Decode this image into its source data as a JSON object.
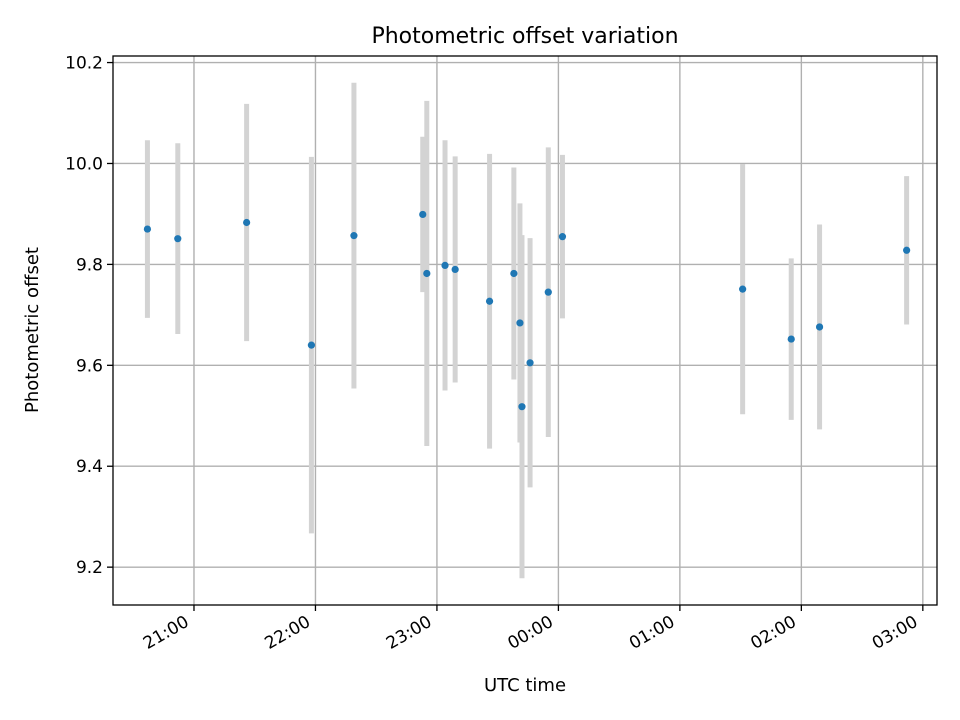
{
  "chart_data": {
    "type": "scatter",
    "title": "Photometric offset variation",
    "xlabel": "UTC time",
    "ylabel": "Photometric offset",
    "xlim": [
      "2023-01-01T20:20:00",
      "2023-01-02T03:07:00"
    ],
    "ylim": [
      9.125,
      10.213
    ],
    "x_ticks": [
      {
        "value": "2023-01-01T21:00:00",
        "label": "21:00"
      },
      {
        "value": "2023-01-01T22:00:00",
        "label": "22:00"
      },
      {
        "value": "2023-01-01T23:00:00",
        "label": "23:00"
      },
      {
        "value": "2023-01-02T00:00:00",
        "label": "00:00"
      },
      {
        "value": "2023-01-02T01:00:00",
        "label": "01:00"
      },
      {
        "value": "2023-01-02T02:00:00",
        "label": "02:00"
      },
      {
        "value": "2023-01-02T03:00:00",
        "label": "03:00"
      }
    ],
    "y_ticks": [
      {
        "value": 9.2,
        "label": "9.2"
      },
      {
        "value": 9.4,
        "label": "9.4"
      },
      {
        "value": 9.6,
        "label": "9.6"
      },
      {
        "value": 9.8,
        "label": "9.8"
      },
      {
        "value": 10.0,
        "label": "10.0"
      },
      {
        "value": 10.2,
        "label": "10.2"
      }
    ],
    "grid": true,
    "points": [
      {
        "x": "2023-01-01T20:37:00",
        "y": 9.87,
        "err": 0.176
      },
      {
        "x": "2023-01-01T20:52:00",
        "y": 9.851,
        "err": 0.189
      },
      {
        "x": "2023-01-01T21:26:00",
        "y": 9.883,
        "err": 0.235
      },
      {
        "x": "2023-01-01T21:58:00",
        "y": 9.64,
        "err": 0.373
      },
      {
        "x": "2023-01-01T22:19:00",
        "y": 9.857,
        "err": 0.303
      },
      {
        "x": "2023-01-01T22:53:00",
        "y": 9.899,
        "err": 0.154
      },
      {
        "x": "2023-01-01T22:55:00",
        "y": 9.782,
        "err": 0.342
      },
      {
        "x": "2023-01-01T23:04:00",
        "y": 9.798,
        "err": 0.248
      },
      {
        "x": "2023-01-01T23:09:00",
        "y": 9.79,
        "err": 0.224
      },
      {
        "x": "2023-01-01T23:26:00",
        "y": 9.727,
        "err": 0.292
      },
      {
        "x": "2023-01-01T23:38:00",
        "y": 9.782,
        "err": 0.21
      },
      {
        "x": "2023-01-01T23:41:00",
        "y": 9.684,
        "err": 0.237
      },
      {
        "x": "2023-01-01T23:42:00",
        "y": 9.518,
        "err": 0.34
      },
      {
        "x": "2023-01-01T23:46:00",
        "y": 9.605,
        "err": 0.247
      },
      {
        "x": "2023-01-01T23:55:00",
        "y": 9.745,
        "err": 0.287
      },
      {
        "x": "2023-01-02T00:02:00",
        "y": 9.855,
        "err": 0.162
      },
      {
        "x": "2023-01-02T01:31:00",
        "y": 9.751,
        "err": 0.248
      },
      {
        "x": "2023-01-02T01:55:00",
        "y": 9.652,
        "err": 0.16
      },
      {
        "x": "2023-01-02T02:09:00",
        "y": 9.676,
        "err": 0.203
      },
      {
        "x": "2023-01-02T02:52:00",
        "y": 9.828,
        "err": 0.147
      }
    ],
    "marker_color": "#1f77b4",
    "errorbar_color": "#d3d3d3"
  }
}
